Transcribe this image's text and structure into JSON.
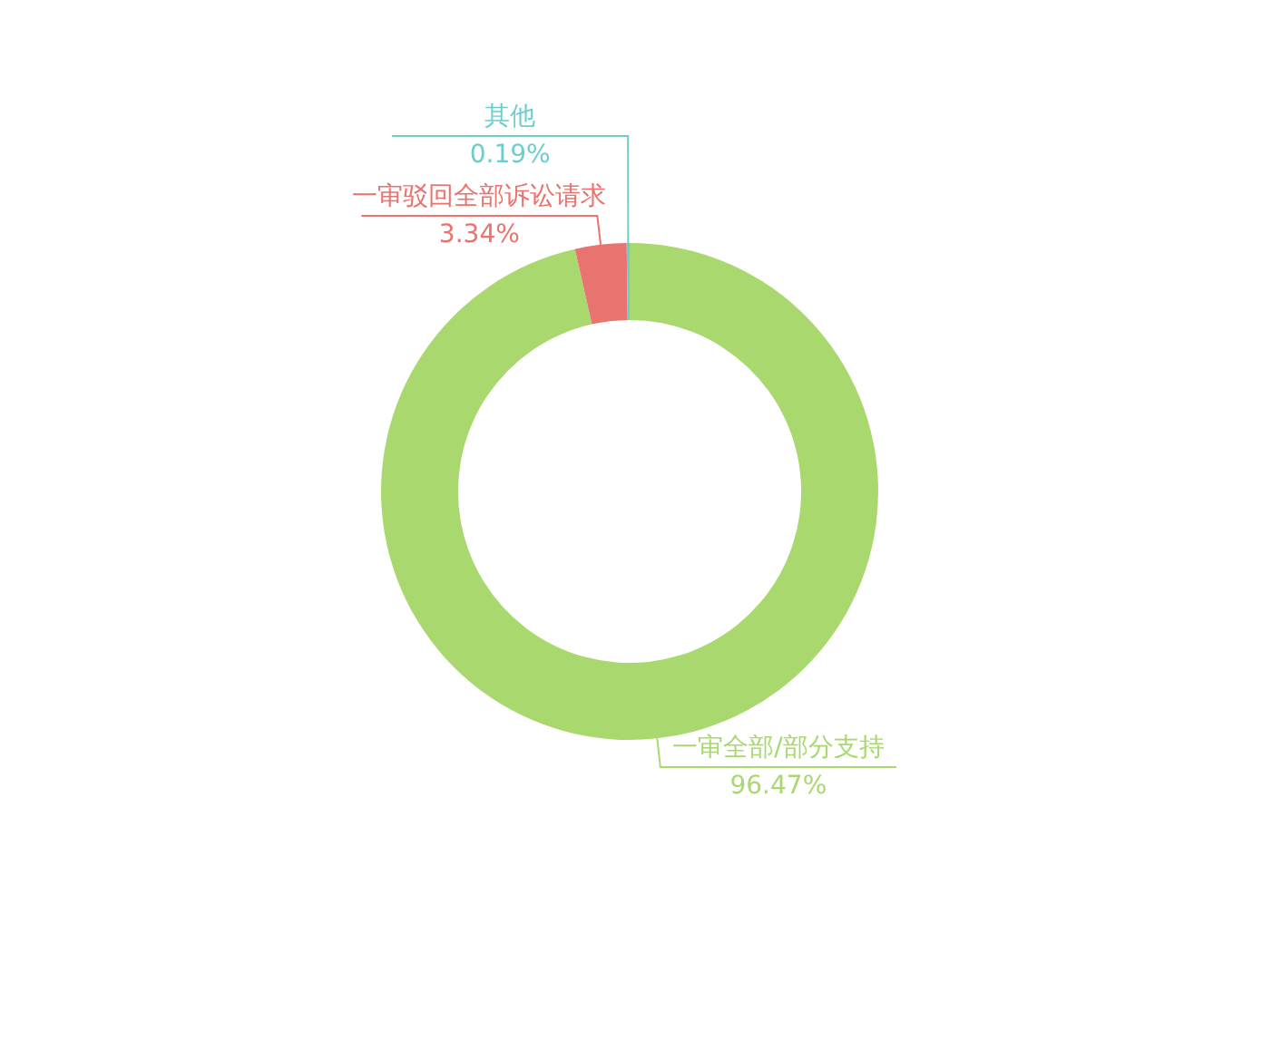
{
  "chart_data": {
    "type": "donut",
    "categories": [
      "一审全部/部分支持",
      "一审驳回全部诉讼请求",
      "其他"
    ],
    "values": [
      96.47,
      3.34,
      0.19
    ],
    "colors": [
      "#a9d86e",
      "#e8736f",
      "#6ccdcd"
    ],
    "value_labels": [
      "96.47%",
      "3.34%",
      "0.19%"
    ]
  }
}
